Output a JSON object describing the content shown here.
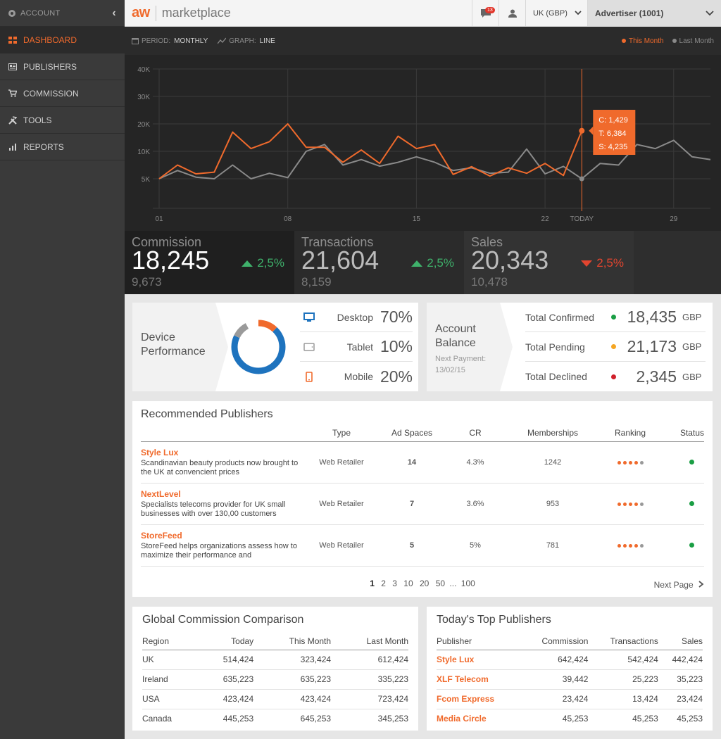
{
  "sidebar": {
    "account_label": "ACCOUNT",
    "items": [
      {
        "label": "DASHBOARD",
        "icon": "dashboard-icon",
        "active": true
      },
      {
        "label": "PUBLISHERS",
        "icon": "publishers-icon",
        "active": false
      },
      {
        "label": "COMMISSION",
        "icon": "cart-icon",
        "active": false
      },
      {
        "label": "TOOLS",
        "icon": "tools-icon",
        "active": false
      },
      {
        "label": "REPORTS",
        "icon": "bar-chart-icon",
        "active": false
      }
    ]
  },
  "topbar": {
    "logo_mark": "aw",
    "logo_text": "marketplace",
    "notification_count": "13",
    "region": "UK (GBP)",
    "advertiser": "Advertiser (1001)"
  },
  "chart_header": {
    "period_label": "PERIOD:",
    "period_value": "MONTHLY",
    "graph_label": "GRAPH:",
    "graph_value": "LINE",
    "legend_this": "This Month",
    "legend_last": "Last Month"
  },
  "chart_data": {
    "type": "line",
    "x_ticks": [
      "01",
      "08",
      "15",
      "22",
      "TODAY",
      "29"
    ],
    "y_ticks": [
      "5K",
      "10K",
      "20K",
      "30K",
      "40K"
    ],
    "series": [
      {
        "name": "This Month",
        "color": "#f06a2c",
        "values": [
          5000,
          7500,
          4800,
          6200,
          17000,
          11000,
          13500,
          20000,
          11500,
          11500,
          8000,
          10500,
          7800,
          15500,
          11000,
          12500,
          5800,
          7200,
          5500,
          7000,
          6000,
          7800,
          5600,
          17500
        ]
      },
      {
        "name": "Last Month",
        "color": "#8a8a8a",
        "values": [
          5000,
          6500,
          5300,
          5000,
          7500,
          5000,
          6000,
          5200,
          10000,
          12500,
          7500,
          8500,
          7300,
          8000,
          9000,
          8000,
          6500,
          7000,
          6000,
          6200,
          3800,
          4800,
          4500,
          5000,
          7800,
          7500,
          12500,
          11000,
          14000,
          9000,
          8500
        ]
      }
    ],
    "tooltip": {
      "c": "C: 1,429",
      "t": "T: 6,384",
      "s": "S: 4,235"
    }
  },
  "kpis": [
    {
      "name": "Commission",
      "value": "18,245",
      "previous": "9,673",
      "delta": "2,5%",
      "direction": "up"
    },
    {
      "name": "Transactions",
      "value": "21,604",
      "previous": "8,159",
      "delta": "2,5%",
      "direction": "up"
    },
    {
      "name": "Sales",
      "value": "20,343",
      "previous": "10,478",
      "delta": "2,5%",
      "direction": "down"
    }
  ],
  "device_performance": {
    "title_line1": "Device",
    "title_line2": "Performance",
    "rows": [
      {
        "label": "Desktop",
        "pct": "70%",
        "icon": "desktop-icon",
        "color": "#1e73be"
      },
      {
        "label": "Tablet",
        "pct": "10%",
        "icon": "tablet-icon",
        "color": "#9a9a9a"
      },
      {
        "label": "Mobile",
        "pct": "20%",
        "icon": "mobile-icon",
        "color": "#f06a2c"
      }
    ]
  },
  "account_balance": {
    "title_line1": "Account",
    "title_line2": "Balance",
    "next_payment_label": "Next Payment:",
    "next_payment_date": "13/02/15",
    "rows": [
      {
        "label": "Total Confirmed",
        "value": "18,435",
        "currency": "GBP",
        "color": "#1a9e44"
      },
      {
        "label": "Total Pending",
        "value": "21,173",
        "currency": "GBP",
        "color": "#f5a623"
      },
      {
        "label": "Total Declined",
        "value": "2,345",
        "currency": "GBP",
        "color": "#d0202a"
      }
    ]
  },
  "recommended": {
    "title": "Recommended Publishers",
    "headers": [
      "Type",
      "Ad Spaces",
      "CR",
      "Memberships",
      "Ranking",
      "Status"
    ],
    "rows": [
      {
        "name": "Style Lux",
        "desc": "Scandinavian beauty products now brought to the UK at convencient prices",
        "type": "Web Retailer",
        "ad_spaces": "14",
        "cr": "4.3%",
        "memberships": "1242",
        "rank": 4
      },
      {
        "name": "NextLevel",
        "desc": "Specialists telecoms provider for UK small businesses with over 130,00 customers",
        "type": "Web Retailer",
        "ad_spaces": "7",
        "cr": "3.6%",
        "memberships": "953",
        "rank": 4
      },
      {
        "name": "StoreFeed",
        "desc": "StoreFeed helps organizations assess how to maximize their performance and",
        "type": "Web Retailer",
        "ad_spaces": "5",
        "cr": "5%",
        "memberships": "781",
        "rank": 4
      }
    ],
    "pages": [
      "1",
      "2",
      "3",
      "10",
      "20",
      "50",
      "...",
      "100"
    ],
    "next_page": "Next Page"
  },
  "global_commission": {
    "title": "Global Commission Comparison",
    "headers": [
      "Region",
      "Today",
      "This Month",
      "Last Month"
    ],
    "rows": [
      [
        "UK",
        "514,424",
        "323,424",
        "612,424"
      ],
      [
        "Ireland",
        "635,223",
        "635,223",
        "335,223"
      ],
      [
        "USA",
        "423,424",
        "423,424",
        "723,424"
      ],
      [
        "Canada",
        "445,253",
        "645,253",
        "345,253"
      ]
    ]
  },
  "top_publishers": {
    "title": "Today's Top Publishers",
    "headers": [
      "Publisher",
      "Commission",
      "Transactions",
      "Sales"
    ],
    "rows": [
      [
        "Style Lux",
        "642,424",
        "542,424",
        "442,424"
      ],
      [
        "XLF Telecom",
        "39,442",
        "25,223",
        "35,223"
      ],
      [
        "Fcom Express",
        "23,424",
        "13,424",
        "23,424"
      ],
      [
        "Media Circle",
        "45,253",
        "45,253",
        "45,253"
      ]
    ]
  }
}
